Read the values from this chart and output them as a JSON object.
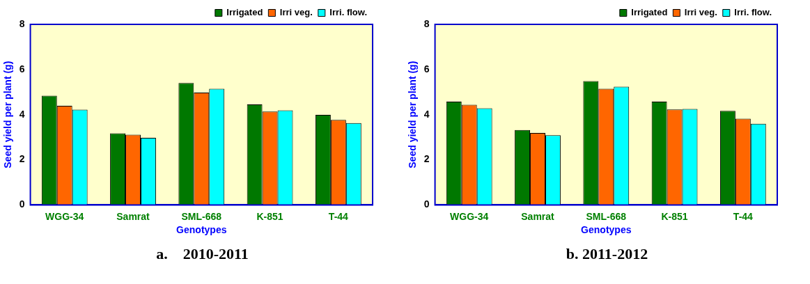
{
  "chart_data": [
    {
      "type": "bar",
      "xlabel": "Genotypes",
      "ylabel": "Seed yield per plant (g)",
      "annotations": [
        "a.    2010-2011"
      ],
      "categories": [
        "WGG-34",
        "Samrat",
        "SML-668",
        "K-851",
        "T-44"
      ],
      "series": [
        {
          "name": "Irrigated",
          "color": "#007800",
          "values": [
            4.84,
            3.17,
            5.4,
            4.45,
            3.99
          ]
        },
        {
          "name": "Irri veg.",
          "color": "#ff6600",
          "values": [
            4.39,
            3.11,
            4.98,
            4.14,
            3.77
          ]
        },
        {
          "name": "Irri. flow.",
          "color": "#00ffff",
          "values": [
            4.22,
            2.97,
            5.15,
            4.19,
            3.63
          ]
        }
      ],
      "ylim": [
        0,
        8
      ],
      "yticks": [
        0,
        2,
        4,
        6,
        8
      ],
      "grid": false,
      "legend": "top right"
    },
    {
      "type": "bar",
      "xlabel": "Genotypes",
      "ylabel": "Seed yield per plant (g)",
      "annotations": [
        "b. 2011-2012"
      ],
      "categories": [
        "WGG-34",
        "Samrat",
        "SML-668",
        "K-851",
        "T-44"
      ],
      "series": [
        {
          "name": "Irrigated",
          "color": "#007800",
          "values": [
            4.58,
            3.32,
            5.49,
            4.58,
            4.17
          ]
        },
        {
          "name": "Irri veg.",
          "color": "#ff6600",
          "values": [
            4.44,
            3.19,
            5.15,
            4.23,
            3.82
          ]
        },
        {
          "name": "Irri. flow.",
          "color": "#00ffff",
          "values": [
            4.28,
            3.09,
            5.24,
            4.25,
            3.6
          ]
        }
      ],
      "ylim": [
        0,
        8
      ],
      "yticks": [
        0,
        2,
        4,
        6,
        8
      ],
      "grid": false,
      "legend": "top right"
    }
  ]
}
